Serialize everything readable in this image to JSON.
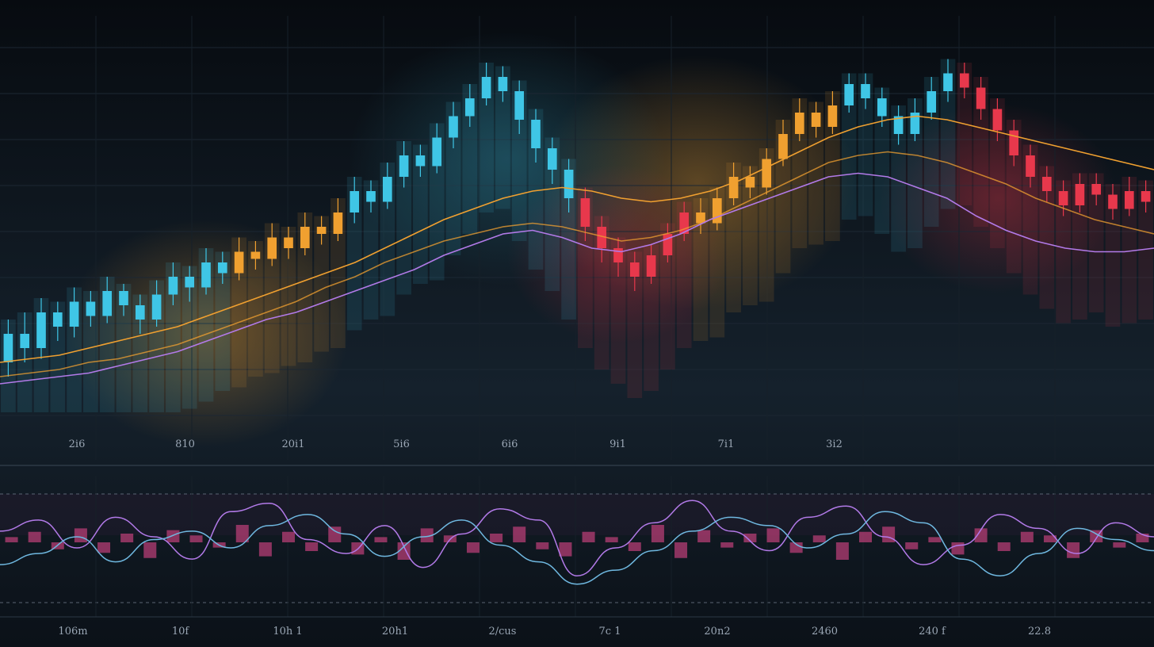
{
  "colors": {
    "background": "#0b1118",
    "candle_cyan": "#3fc6e6",
    "candle_orange": "#f0a030",
    "candle_red": "#e8384c",
    "line_orange": "#f0a030",
    "line_purple": "#b27ae8",
    "line_blue": "#6fb8e0",
    "histogram": "#c0407a"
  },
  "chart_data": [
    {
      "type": "candlestick",
      "x_tick_labels": [
        "2i6",
        "810",
        "20i1",
        "5i6",
        "6i6",
        "9i1",
        "7i1",
        "3i2"
      ],
      "grid": true,
      "legend": "none",
      "ylim": [
        0,
        100
      ],
      "candles": [
        [
          14,
          22,
          10,
          26
        ],
        [
          22,
          18,
          14,
          28
        ],
        [
          18,
          28,
          15,
          32
        ],
        [
          28,
          24,
          20,
          31
        ],
        [
          24,
          31,
          21,
          35
        ],
        [
          31,
          27,
          24,
          34
        ],
        [
          27,
          34,
          25,
          38
        ],
        [
          34,
          30,
          27,
          36
        ],
        [
          30,
          26,
          22,
          33
        ],
        [
          26,
          33,
          24,
          37
        ],
        [
          33,
          38,
          30,
          42
        ],
        [
          38,
          35,
          31,
          41
        ],
        [
          35,
          42,
          33,
          46
        ],
        [
          42,
          39,
          36,
          45
        ],
        [
          39,
          45,
          37,
          49
        ],
        [
          45,
          43,
          40,
          48
        ],
        [
          43,
          49,
          41,
          53
        ],
        [
          49,
          46,
          43,
          52
        ],
        [
          46,
          52,
          44,
          56
        ],
        [
          52,
          50,
          47,
          55
        ],
        [
          50,
          56,
          48,
          60
        ],
        [
          56,
          62,
          53,
          66
        ],
        [
          62,
          59,
          56,
          65
        ],
        [
          59,
          66,
          57,
          70
        ],
        [
          66,
          72,
          63,
          76
        ],
        [
          72,
          69,
          66,
          75
        ],
        [
          69,
          77,
          67,
          81
        ],
        [
          77,
          83,
          74,
          87
        ],
        [
          83,
          88,
          80,
          92
        ],
        [
          88,
          94,
          86,
          98
        ],
        [
          94,
          90,
          87,
          97
        ],
        [
          90,
          82,
          78,
          93
        ],
        [
          82,
          74,
          70,
          85
        ],
        [
          74,
          68,
          64,
          77
        ],
        [
          68,
          60,
          56,
          71
        ],
        [
          60,
          52,
          48,
          63
        ],
        [
          52,
          46,
          42,
          55
        ],
        [
          46,
          42,
          38,
          49
        ],
        [
          42,
          38,
          34,
          45
        ],
        [
          38,
          44,
          36,
          47
        ],
        [
          44,
          50,
          42,
          53
        ],
        [
          50,
          56,
          48,
          59
        ],
        [
          56,
          53,
          50,
          60
        ],
        [
          53,
          60,
          51,
          63
        ],
        [
          60,
          66,
          58,
          70
        ],
        [
          66,
          63,
          60,
          69
        ],
        [
          63,
          71,
          61,
          74
        ],
        [
          71,
          78,
          69,
          82
        ],
        [
          78,
          84,
          76,
          88
        ],
        [
          84,
          80,
          77,
          87
        ],
        [
          80,
          86,
          78,
          90
        ],
        [
          86,
          92,
          84,
          95
        ],
        [
          92,
          88,
          85,
          95
        ],
        [
          88,
          83,
          80,
          91
        ],
        [
          83,
          78,
          75,
          86
        ],
        [
          78,
          84,
          76,
          88
        ],
        [
          84,
          90,
          82,
          94
        ],
        [
          90,
          95,
          87,
          99
        ],
        [
          95,
          91,
          88,
          98
        ],
        [
          91,
          85,
          82,
          94
        ],
        [
          85,
          79,
          76,
          88
        ],
        [
          79,
          72,
          69,
          82
        ],
        [
          72,
          66,
          63,
          75
        ],
        [
          66,
          62,
          59,
          69
        ],
        [
          62,
          58,
          55,
          65
        ],
        [
          58,
          64,
          56,
          67
        ],
        [
          64,
          61,
          58,
          67
        ],
        [
          61,
          57,
          54,
          64
        ],
        [
          57,
          62,
          55,
          66
        ],
        [
          62,
          59,
          56,
          65
        ]
      ],
      "ma_series": [
        {
          "values": [
            14,
            15,
            16,
            18,
            20,
            22,
            24,
            27,
            30,
            33,
            36,
            39,
            42,
            46,
            50,
            54,
            57,
            60,
            62,
            63,
            62,
            60,
            59,
            60,
            62,
            65,
            69,
            73,
            77,
            80,
            82,
            83,
            82,
            80,
            78,
            76,
            74,
            72,
            70,
            68
          ]
        },
        {
          "values": [
            10,
            11,
            12,
            14,
            15,
            17,
            19,
            22,
            25,
            28,
            31,
            35,
            38,
            42,
            45,
            48,
            50,
            52,
            53,
            52,
            50,
            48,
            49,
            51,
            54,
            58,
            62,
            66,
            70,
            72,
            73,
            72,
            70,
            67,
            64,
            60,
            57,
            54,
            52,
            50
          ]
        },
        {
          "values": [
            8,
            9,
            10,
            11,
            13,
            15,
            17,
            20,
            23,
            26,
            28,
            31,
            34,
            37,
            40,
            44,
            47,
            50,
            51,
            49,
            46,
            45,
            47,
            50,
            54,
            57,
            60,
            63,
            66,
            67,
            66,
            63,
            60,
            55,
            51,
            48,
            46,
            45,
            45,
            46
          ]
        }
      ]
    },
    {
      "type": "line",
      "x_tick_labels": [
        "106m",
        "10f",
        "10h 1",
        "20h1",
        "2/cus",
        "7c 1",
        "20n2",
        "2460",
        "240 f",
        "22.8"
      ],
      "grid": true,
      "legend": "none",
      "ylim": [
        -100,
        100
      ],
      "series": [
        {
          "values": [
            20,
            40,
            -10,
            45,
            10,
            -30,
            55,
            70,
            5,
            -20,
            30,
            -45,
            15,
            60,
            40,
            -60,
            -10,
            35,
            75,
            20,
            -15,
            45,
            65,
            10,
            -40,
            -5,
            50,
            25,
            -20,
            35,
            10
          ]
        },
        {
          "values": [
            -40,
            -20,
            10,
            -35,
            5,
            20,
            -10,
            30,
            50,
            15,
            -25,
            10,
            40,
            -5,
            -35,
            -75,
            -50,
            -15,
            20,
            45,
            30,
            -10,
            15,
            55,
            35,
            -30,
            -60,
            -20,
            25,
            5,
            -15
          ]
        }
      ],
      "histogram": [
        3,
        6,
        -4,
        8,
        -6,
        5,
        -9,
        7,
        4,
        -3,
        10,
        -8,
        6,
        -5,
        9,
        -7,
        3,
        -10,
        8,
        4,
        -6,
        5,
        9,
        -4,
        -8,
        6,
        3,
        -5,
        10,
        -9,
        7,
        -3,
        5,
        8,
        -6,
        4,
        -10,
        6,
        9,
        -4,
        3,
        -7,
        8,
        -5,
        6,
        4,
        -9,
        7,
        -3,
        5
      ]
    }
  ]
}
